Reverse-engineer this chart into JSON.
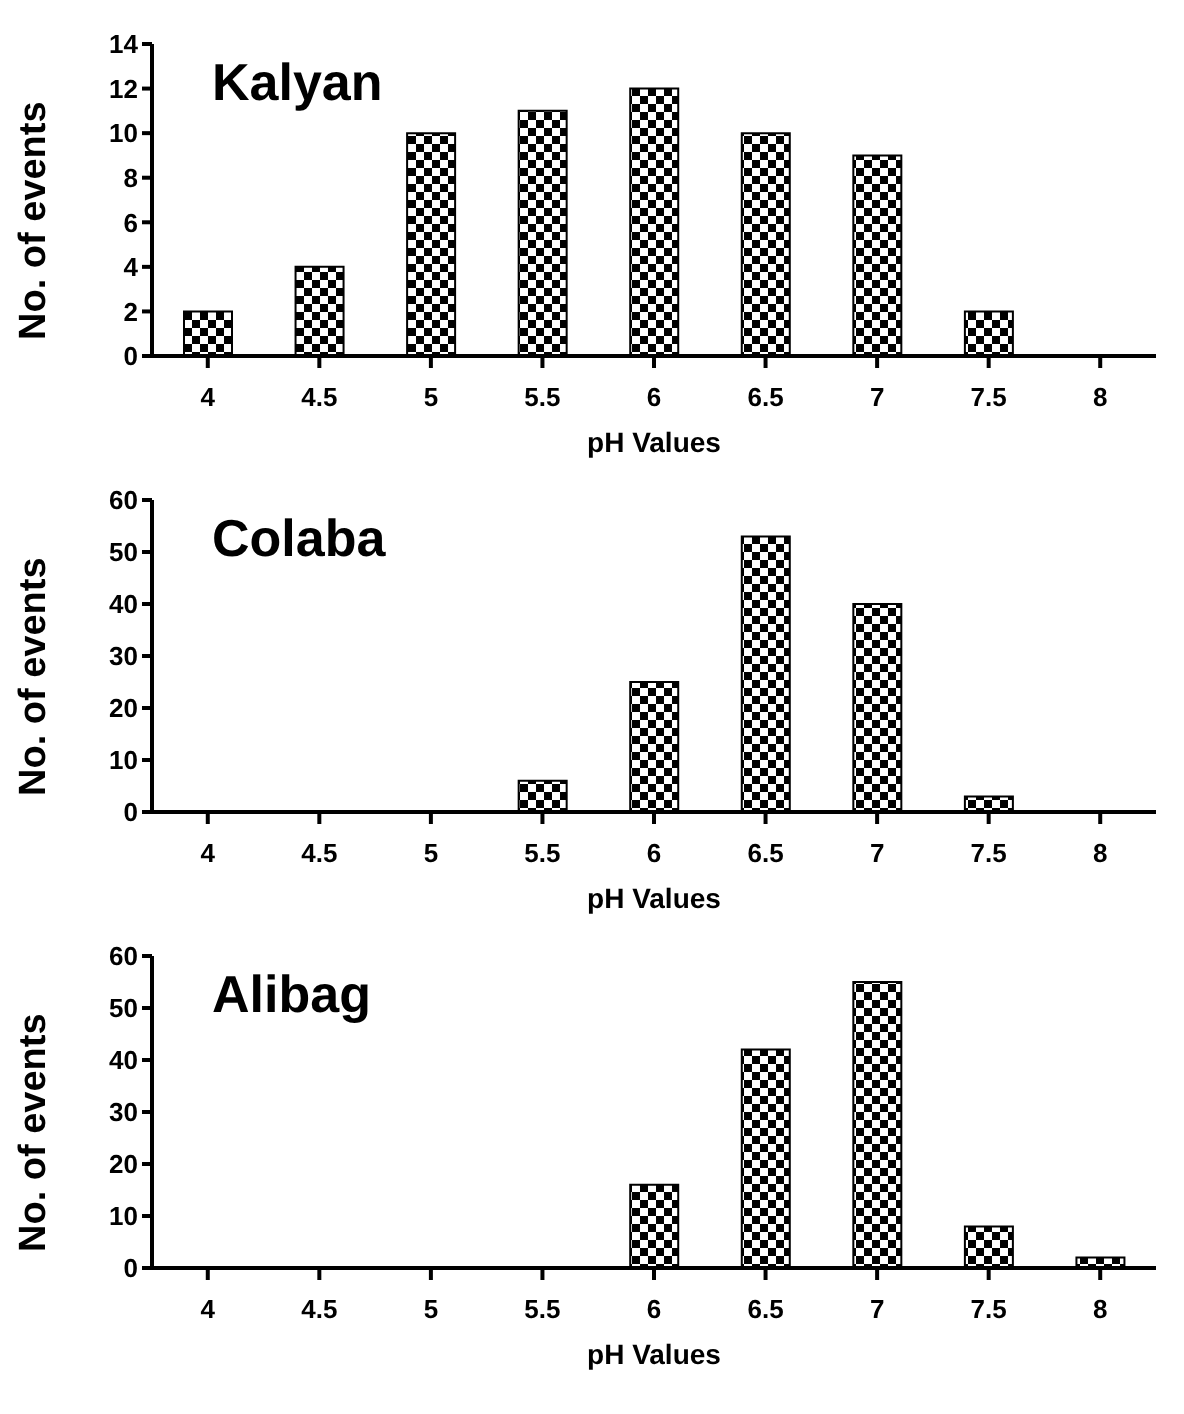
{
  "chart_data": [
    {
      "type": "bar",
      "title": "Kalyan",
      "xlabel": "pH Values",
      "ylabel": "No. of events",
      "categories": [
        "4",
        "4.5",
        "5",
        "5.5",
        "6",
        "6.5",
        "7",
        "7.5",
        "8"
      ],
      "values": [
        2,
        4,
        10,
        11,
        12,
        10,
        9,
        2,
        0
      ],
      "color": "#000000",
      "ylim": [
        0,
        14
      ],
      "yticks": [
        0,
        2,
        4,
        6,
        8,
        10,
        12,
        14
      ],
      "grid": false,
      "legend": false
    },
    {
      "type": "bar",
      "title": "Colaba",
      "xlabel": "pH Values",
      "ylabel": "No. of events",
      "categories": [
        "4",
        "4.5",
        "5",
        "5.5",
        "6",
        "6.5",
        "7",
        "7.5",
        "8"
      ],
      "values": [
        0,
        0,
        0,
        6,
        25,
        53,
        40,
        3,
        0
      ],
      "color": "#000000",
      "ylim": [
        0,
        60
      ],
      "yticks": [
        0,
        10,
        20,
        30,
        40,
        50,
        60
      ],
      "grid": false,
      "legend": false
    },
    {
      "type": "bar",
      "title": "Alibag",
      "xlabel": "pH Values",
      "ylabel": "No. of events",
      "categories": [
        "4",
        "4.5",
        "5",
        "5.5",
        "6",
        "6.5",
        "7",
        "7.5",
        "8"
      ],
      "values": [
        0,
        0,
        0,
        0,
        16,
        42,
        55,
        8,
        2
      ],
      "color": "#000000",
      "ylim": [
        0,
        60
      ],
      "yticks": [
        0,
        10,
        20,
        30,
        40,
        50,
        60
      ],
      "grid": false,
      "legend": false
    }
  ]
}
